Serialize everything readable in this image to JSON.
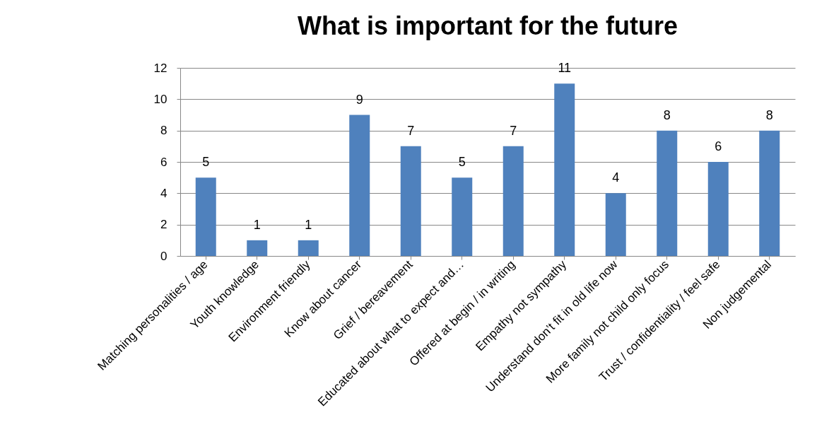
{
  "chart_data": {
    "type": "bar",
    "title": "What is important for the future",
    "categories": [
      "Matching personalities / age",
      "Youth knowledge",
      "Environment friendly",
      "Know about cancer",
      "Grief / bereavement",
      "Educated about what to expect and…",
      "Offered at begin / in writing",
      "Empathy not sympathy",
      "Understand don’t fit in old life now",
      "More family not child only focus",
      "Trust / confidentiality / feel safe",
      "Non judgemental"
    ],
    "values": [
      5,
      1,
      1,
      9,
      7,
      5,
      7,
      11,
      4,
      8,
      6,
      8
    ],
    "color": "#4f81bd",
    "ylim": [
      0,
      12
    ],
    "yticks": [
      0,
      2,
      4,
      6,
      8,
      10,
      12
    ],
    "grid": "y",
    "data_labels": true
  }
}
